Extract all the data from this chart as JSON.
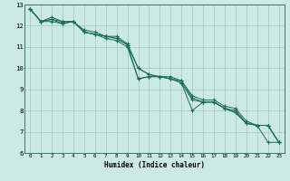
{
  "xlabel": "Humidex (Indice chaleur)",
  "ylabel": "",
  "bg_color": "#cce9e4",
  "grid_color": "#a0c8c0",
  "line_color": "#1a6b5a",
  "marker_color": "#1a6b5a",
  "xlim": [
    -0.5,
    23.5
  ],
  "ylim": [
    6,
    13
  ],
  "xticks": [
    0,
    1,
    2,
    3,
    4,
    5,
    6,
    7,
    8,
    9,
    10,
    11,
    12,
    13,
    14,
    15,
    16,
    17,
    18,
    19,
    20,
    21,
    22,
    23
  ],
  "yticks": [
    6,
    7,
    8,
    9,
    10,
    11,
    12,
    13
  ],
  "series": [
    [
      12.8,
      12.2,
      12.2,
      12.1,
      12.2,
      11.7,
      11.6,
      11.4,
      11.3,
      11.0,
      9.5,
      9.6,
      9.6,
      9.5,
      9.3,
      8.0,
      8.4,
      8.4,
      8.1,
      7.9,
      7.4,
      7.3,
      6.5,
      6.5
    ],
    [
      12.8,
      12.2,
      12.4,
      12.2,
      12.2,
      11.8,
      11.7,
      11.5,
      11.5,
      11.15,
      10.0,
      9.7,
      9.6,
      9.6,
      9.4,
      8.7,
      8.5,
      8.5,
      8.2,
      8.1,
      7.5,
      7.3,
      7.3,
      6.5
    ],
    [
      12.8,
      12.2,
      12.3,
      12.2,
      12.2,
      11.7,
      11.6,
      11.5,
      11.4,
      11.1,
      10.0,
      9.7,
      9.6,
      9.5,
      9.4,
      8.6,
      8.4,
      8.4,
      8.1,
      8.0,
      7.4,
      7.3,
      7.3,
      6.5
    ],
    [
      12.8,
      12.2,
      12.3,
      12.1,
      12.2,
      11.7,
      11.6,
      11.5,
      11.4,
      11.1,
      9.5,
      9.6,
      9.6,
      9.5,
      9.3,
      8.5,
      8.4,
      8.4,
      8.1,
      7.9,
      7.4,
      7.3,
      7.3,
      6.5
    ]
  ]
}
